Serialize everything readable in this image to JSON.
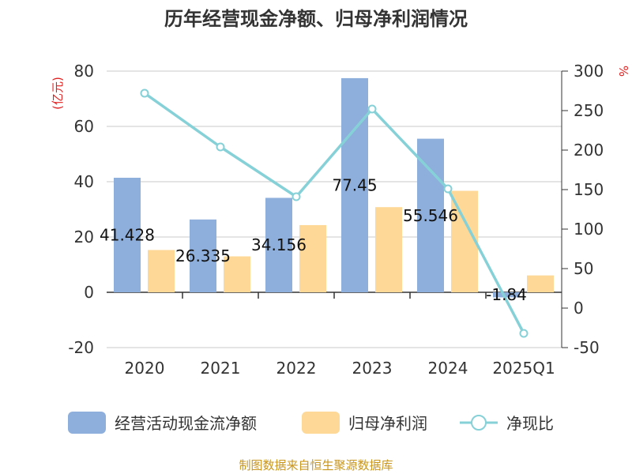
{
  "chart_data": {
    "type": "bar",
    "title": "历年经营现金净额、归母净利润情况",
    "categories": [
      "2020",
      "2021",
      "2022",
      "2023",
      "2024",
      "2025Q1"
    ],
    "series": [
      {
        "name": "经营活动现金流净额",
        "type": "bar",
        "axis": "left",
        "color": "#8eaedb",
        "values": [
          41.428,
          26.335,
          34.156,
          77.45,
          55.546,
          -1.84
        ],
        "labels": [
          "41.428",
          "26.335",
          "34.156",
          "77.45",
          "55.546",
          "-1.84"
        ]
      },
      {
        "name": "归母净利润",
        "type": "bar",
        "axis": "left",
        "color": "#fdd897",
        "values": [
          15.3,
          13.0,
          24.3,
          30.8,
          36.7,
          6.1
        ]
      },
      {
        "name": "净现比",
        "type": "line",
        "axis": "right",
        "color": "#86d1d8",
        "values": [
          272,
          204,
          141,
          252,
          151,
          -32
        ]
      }
    ],
    "y_left": {
      "unit": "(亿元)",
      "ylim": [
        -20,
        80
      ],
      "ticks": [
        -20,
        0,
        20,
        40,
        60,
        80
      ]
    },
    "y_right": {
      "unit": "%",
      "ylim": [
        -50,
        300
      ],
      "ticks": [
        -50,
        0,
        50,
        100,
        150,
        200,
        250,
        300
      ]
    },
    "grid": true,
    "legend_position": "bottom"
  },
  "source_text": "制图数据来自恒生聚源数据库"
}
